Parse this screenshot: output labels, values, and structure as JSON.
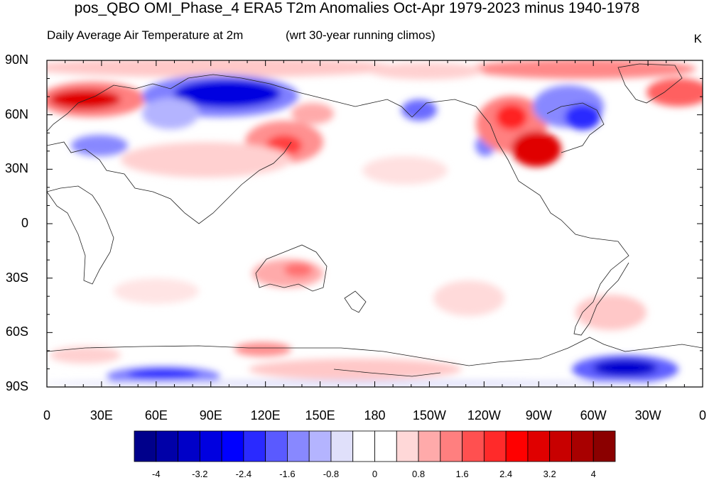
{
  "title": "pos_QBO OMI_Phase_4 ERA5 T2m Anomalies Oct-Apr 1979-2023 minus 1940-1978",
  "subtitle_left": "Daily Average Air Temperature at 2m",
  "subtitle_right": "(wrt 30-year running climos)",
  "units": "K",
  "lat_labels": [
    "90N",
    "60N",
    "30N",
    "0",
    "30S",
    "60S",
    "90S"
  ],
  "lon_labels": [
    "0",
    "30E",
    "60E",
    "90E",
    "120E",
    "150E",
    "180",
    "150W",
    "120W",
    "90W",
    "60W",
    "30W",
    "0"
  ],
  "colorbar": {
    "labels": [
      "-4",
      "-3.2",
      "-2.4",
      "-1.6",
      "-0.8",
      "0",
      "0.8",
      "1.6",
      "2.4",
      "3.2",
      "4"
    ],
    "colors": [
      "#00008b",
      "#0000a8",
      "#0000c8",
      "#0000e0",
      "#0000ff",
      "#2a2aff",
      "#5a5aff",
      "#8888ff",
      "#b4b4ff",
      "#e0e0fa",
      "#ffffff",
      "#ffffff",
      "#ffd8d8",
      "#ffaaaa",
      "#ff7f7f",
      "#ff5050",
      "#ff2a2a",
      "#ff0000",
      "#e00000",
      "#c80000",
      "#a80000",
      "#8b0000"
    ]
  }
}
